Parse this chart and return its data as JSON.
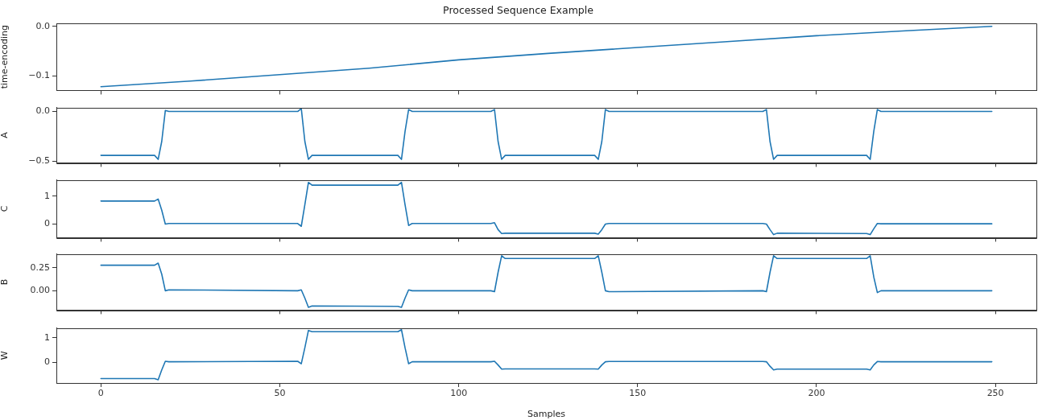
{
  "chart_data": [
    {
      "type": "line",
      "title": "Processed Sequence Example",
      "ylabel": "time-encoding",
      "color": "#1f77b4",
      "x": [
        0,
        25,
        50,
        75,
        100,
        125,
        150,
        175,
        200,
        225,
        249
      ],
      "values": [
        -0.1225,
        -0.111,
        -0.098,
        -0.085,
        -0.068,
        -0.055,
        -0.043,
        -0.031,
        -0.019,
        -0.009,
        0.0
      ],
      "xlim": [
        -12.45,
        261.45
      ],
      "xticks": [
        0,
        50,
        100,
        150,
        200,
        250
      ],
      "ylim": [
        -0.13,
        0.006
      ],
      "yticks": [
        {
          "value": 0,
          "label": "0.0"
        },
        {
          "value": -0.1,
          "label": "−0.1"
        }
      ],
      "tick_labels": "y",
      "grid": false
    },
    {
      "type": "line",
      "ylabel": "A",
      "color": "#1f77b4",
      "x": [
        0,
        15,
        16,
        17,
        18,
        19,
        55,
        56,
        57,
        58,
        59,
        83,
        84,
        85,
        86,
        87,
        109,
        110,
        111,
        112,
        113,
        138,
        139,
        140,
        141,
        142,
        185,
        186,
        187,
        188,
        189,
        214,
        215,
        216,
        217,
        218,
        249
      ],
      "values": [
        -0.44,
        -0.44,
        -0.48,
        -0.3,
        0.01,
        0.0,
        0.0,
        0.03,
        -0.3,
        -0.48,
        -0.44,
        -0.44,
        -0.48,
        -0.2,
        0.02,
        0.0,
        0.0,
        0.02,
        -0.3,
        -0.48,
        -0.44,
        -0.44,
        -0.48,
        -0.3,
        0.02,
        0.0,
        0.0,
        0.02,
        -0.3,
        -0.48,
        -0.44,
        -0.44,
        -0.48,
        -0.2,
        0.02,
        0.0,
        0.0
      ],
      "xlim": [
        -12.45,
        261.45
      ],
      "xticks": [
        0,
        50,
        100,
        150,
        200,
        250
      ],
      "ylim": [
        -0.515,
        0.04
      ],
      "yticks": [
        {
          "value": 0,
          "label": "0.0"
        },
        {
          "value": -0.5,
          "label": "−0.5"
        }
      ],
      "tick_labels": "y",
      "grid": false
    },
    {
      "type": "line",
      "ylabel": "C",
      "color": "#1f77b4",
      "x": [
        0,
        15,
        16,
        17,
        18,
        19,
        55,
        56,
        57,
        58,
        59,
        83,
        84,
        85,
        86,
        87,
        109,
        110,
        111,
        112,
        113,
        138,
        139,
        140,
        141,
        142,
        185,
        186,
        187,
        188,
        189,
        214,
        215,
        216,
        217,
        218,
        249
      ],
      "values": [
        0.83,
        0.83,
        0.9,
        0.5,
        0.0,
        0.02,
        0.02,
        -0.08,
        0.7,
        1.5,
        1.4,
        1.4,
        1.5,
        0.7,
        -0.05,
        0.02,
        0.02,
        0.05,
        -0.2,
        -0.34,
        -0.33,
        -0.33,
        -0.36,
        -0.2,
        0.0,
        0.02,
        0.02,
        0.0,
        -0.2,
        -0.38,
        -0.33,
        -0.34,
        -0.38,
        -0.17,
        0.02,
        0.01,
        0.01
      ],
      "xlim": [
        -12.45,
        261.45
      ],
      "xticks": [
        0,
        50,
        100,
        150,
        200,
        250
      ],
      "ylim": [
        -0.49,
        1.59
      ],
      "yticks": [
        0,
        1
      ],
      "tick_labels": "y",
      "grid": false
    },
    {
      "type": "line",
      "ylabel": "B",
      "color": "#1f77b4",
      "x": [
        0,
        15,
        16,
        17,
        18,
        19,
        55,
        56,
        57,
        58,
        59,
        83,
        84,
        85,
        86,
        87,
        109,
        110,
        111,
        112,
        113,
        138,
        139,
        140,
        141,
        142,
        185,
        186,
        187,
        188,
        189,
        214,
        215,
        216,
        217,
        218,
        249
      ],
      "values": [
        0.277,
        0.277,
        0.3,
        0.18,
        0.0,
        0.01,
        0.0,
        0.01,
        -0.08,
        -0.18,
        -0.165,
        -0.17,
        -0.18,
        -0.08,
        0.01,
        0.0,
        0.0,
        -0.01,
        0.2,
        0.38,
        0.35,
        0.35,
        0.38,
        0.2,
        0.0,
        -0.01,
        0.0,
        -0.01,
        0.2,
        0.38,
        0.35,
        0.35,
        0.38,
        0.15,
        -0.02,
        0.0,
        0.0
      ],
      "xlim": [
        -12.45,
        261.45
      ],
      "xticks": [
        0,
        50,
        100,
        150,
        200,
        250
      ],
      "ylim": [
        -0.21,
        0.4
      ],
      "yticks": [
        {
          "value": 0,
          "label": "0.00"
        },
        0.25
      ],
      "tick_labels": "y",
      "grid": false
    },
    {
      "type": "line",
      "ylabel": "W",
      "xlabel": "Samples",
      "color": "#1f77b4",
      "x": [
        0,
        15,
        16,
        17,
        18,
        19,
        55,
        56,
        57,
        58,
        59,
        83,
        84,
        85,
        86,
        87,
        109,
        110,
        111,
        112,
        113,
        138,
        139,
        140,
        141,
        142,
        185,
        186,
        187,
        188,
        189,
        214,
        215,
        216,
        217,
        218,
        249
      ],
      "values": [
        -0.65,
        -0.65,
        -0.7,
        -0.3,
        0.05,
        0.03,
        0.05,
        -0.05,
        0.6,
        1.3,
        1.25,
        1.25,
        1.33,
        0.6,
        -0.05,
        0.03,
        0.03,
        0.05,
        -0.1,
        -0.27,
        -0.26,
        -0.26,
        -0.27,
        -0.1,
        0.03,
        0.04,
        0.04,
        0.03,
        -0.15,
        -0.3,
        -0.27,
        -0.27,
        -0.3,
        -0.1,
        0.04,
        0.03,
        0.03
      ],
      "xlim": [
        -12.45,
        261.45
      ],
      "xticks": [
        0,
        50,
        100,
        150,
        200,
        250
      ],
      "ylim": [
        -0.83,
        1.4
      ],
      "yticks": [
        0,
        1
      ],
      "grid": false
    }
  ]
}
